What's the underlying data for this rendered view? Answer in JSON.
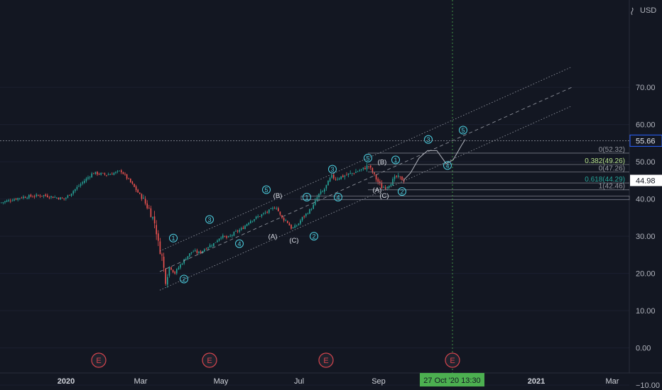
{
  "chart_data": {
    "type": "candlestick",
    "currency_label": "USD",
    "y_axis": {
      "ticks": [
        "70.00",
        "60.00",
        "50.00",
        "40.00",
        "30.00",
        "20.00",
        "10.00",
        "0.00",
        "−10.00"
      ],
      "tick_values": [
        70,
        60,
        50,
        40,
        30,
        20,
        10,
        0,
        -10
      ]
    },
    "x_axis": {
      "ticks": [
        "2020",
        "Mar",
        "May",
        "Jul",
        "Sep",
        "2021",
        "Mar"
      ],
      "crosshair_label": "27 Oct '20   13:30"
    },
    "crosshair_price": "55.66",
    "last_price": "44.98",
    "earnings_markers": [
      "E",
      "E",
      "E",
      "E"
    ],
    "price_path": [
      [
        0,
        39
      ],
      [
        30,
        40.5
      ],
      [
        60,
        41
      ],
      [
        90,
        40
      ],
      [
        110,
        43.5
      ],
      [
        130,
        47
      ],
      [
        150,
        46.5
      ],
      [
        170,
        47.5
      ],
      [
        185,
        44
      ],
      [
        200,
        40
      ],
      [
        210,
        37
      ],
      [
        218,
        33
      ],
      [
        222,
        28
      ],
      [
        228,
        24
      ],
      [
        232,
        18
      ],
      [
        238,
        22
      ],
      [
        245,
        20
      ],
      [
        252,
        22
      ],
      [
        260,
        24
      ],
      [
        270,
        26
      ],
      [
        280,
        25.5
      ],
      [
        290,
        27
      ],
      [
        300,
        28
      ],
      [
        310,
        30
      ],
      [
        320,
        29.5
      ],
      [
        330,
        31
      ],
      [
        340,
        32
      ],
      [
        350,
        34
      ],
      [
        360,
        35
      ],
      [
        370,
        36
      ],
      [
        380,
        37
      ],
      [
        388,
        38
      ],
      [
        395,
        35
      ],
      [
        403,
        34
      ],
      [
        410,
        32
      ],
      [
        418,
        33
      ],
      [
        425,
        35
      ],
      [
        433,
        36.5
      ],
      [
        440,
        38
      ],
      [
        447,
        41
      ],
      [
        454,
        42
      ],
      [
        460,
        44
      ],
      [
        466,
        46
      ],
      [
        472,
        45.5
      ],
      [
        480,
        46
      ],
      [
        488,
        46.5
      ],
      [
        496,
        47
      ],
      [
        503,
        47.5
      ],
      [
        510,
        48
      ],
      [
        518,
        49
      ],
      [
        524,
        47
      ],
      [
        530,
        45
      ],
      [
        537,
        43
      ],
      [
        544,
        43.5
      ],
      [
        550,
        44.5
      ],
      [
        557,
        46
      ],
      [
        563,
        45.5
      ],
      [
        568,
        44.98
      ]
    ],
    "projection_path": [
      [
        568,
        44.98
      ],
      [
        578,
        47
      ],
      [
        590,
        51
      ],
      [
        602,
        53
      ],
      [
        615,
        53
      ],
      [
        628,
        49.5
      ],
      [
        638,
        50.5
      ],
      [
        650,
        54.5
      ],
      [
        655,
        56
      ]
    ],
    "channel": {
      "upper": [
        [
          225,
          26
        ],
        [
          805,
          75.5
        ]
      ],
      "middle": [
        [
          225,
          20.5
        ],
        [
          805,
          70
        ]
      ],
      "lower": [
        [
          225,
          15.5
        ],
        [
          805,
          65
        ]
      ]
    },
    "fib_levels": [
      {
        "label": "0(52.32)",
        "value": 52.32,
        "color": "#9598a1"
      },
      {
        "label": "0.382(49.26)",
        "value": 49.26,
        "color": "#b6e08a"
      },
      {
        "label": "0(47.26)",
        "value": 47.26,
        "color": "#9598a1"
      },
      {
        "label": "0.618(44.29)",
        "value": 44.29,
        "color": "#26a69a"
      },
      {
        "label": "1(42.46)",
        "value": 42.46,
        "color": "#9598a1"
      }
    ],
    "wave_labels": {
      "circled": [
        {
          "text": "1",
          "px": [
            244,
            29.5
          ]
        },
        {
          "text": "2",
          "px": [
            259,
            18.5
          ]
        },
        {
          "text": "3",
          "px": [
            295,
            34.5
          ]
        },
        {
          "text": "4",
          "px": [
            337,
            28
          ]
        },
        {
          "text": "5",
          "px": [
            375,
            42.5
          ]
        },
        {
          "text": "1",
          "px": [
            432,
            40.5
          ]
        },
        {
          "text": "2",
          "px": [
            442,
            30
          ]
        },
        {
          "text": "3",
          "px": [
            468,
            48
          ]
        },
        {
          "text": "4",
          "px": [
            476,
            40.5
          ]
        },
        {
          "text": "5",
          "px": [
            518,
            51
          ]
        },
        {
          "text": "1",
          "px": [
            557,
            50.5
          ]
        },
        {
          "text": "2",
          "px": [
            566,
            42
          ]
        },
        {
          "text": "3",
          "px": [
            603,
            56
          ]
        },
        {
          "text": "4",
          "px": [
            630,
            49
          ]
        },
        {
          "text": "5",
          "px": [
            652,
            58.5
          ]
        }
      ],
      "plain": [
        {
          "text": "(B)",
          "px": [
            391,
            41
          ]
        },
        {
          "text": "(A)",
          "px": [
            384,
            30
          ]
        },
        {
          "text": "(C)",
          "px": [
            414,
            29
          ]
        },
        {
          "text": "(B)",
          "px": [
            538,
            50
          ]
        },
        {
          "text": "(A)",
          "px": [
            531,
            42.5
          ]
        },
        {
          "text": "(C)",
          "px": [
            541,
            41
          ]
        }
      ]
    },
    "colors": {
      "background": "#131722",
      "up": "#26a69a",
      "down": "#ef5350",
      "wave": "#4dd0e1",
      "channel": "#b2b5be",
      "earnings": "#d6454e",
      "crosshair": "#4caf50"
    }
  }
}
